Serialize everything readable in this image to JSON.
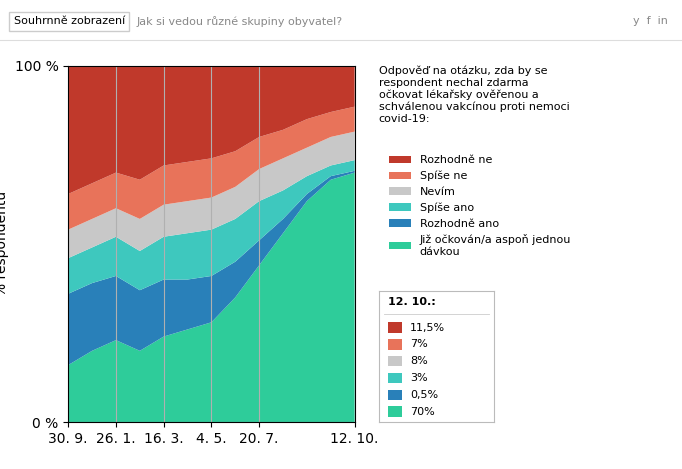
{
  "chart_data": {
    "type": "area",
    "stacked": true,
    "title": "Odpověď na otázku, zda by se\nrespondent nechal zdarma\nočkovat lékařsky ověřenou a\nschválenou vakcínou proti nemoci\ncovid-19:",
    "ylabel": "% respondentů",
    "categories": [
      "30. 9.",
      null,
      "26. 1.",
      null,
      "16. 3.",
      null,
      "4. 5.",
      null,
      "20. 7.",
      null,
      null,
      null,
      "12. 10."
    ],
    "series": [
      {
        "name": "Rozhodně ne",
        "color": "#c0392b",
        "values": [
          36,
          33,
          30,
          32,
          28,
          27,
          26,
          24,
          20,
          18,
          15,
          13,
          11.5
        ]
      },
      {
        "name": "Spíše ne",
        "color": "#e8735a",
        "values": [
          10,
          10,
          10,
          11,
          11,
          11,
          11,
          10,
          9,
          8,
          8,
          7,
          7
        ]
      },
      {
        "name": "Nevím",
        "color": "#c8c8c8",
        "values": [
          8,
          8,
          8,
          9,
          9,
          9,
          9,
          9,
          9,
          9,
          8,
          8,
          8
        ]
      },
      {
        "name": "Spíše ano",
        "color": "#3ec8be",
        "values": [
          10,
          10,
          11,
          11,
          12,
          13,
          13,
          12,
          11,
          8,
          5,
          3,
          3
        ]
      },
      {
        "name": "Rozhodně ano",
        "color": "#2980b9",
        "values": [
          20,
          19,
          18,
          17,
          16,
          14,
          13,
          10,
          7,
          4,
          2,
          1,
          0.5
        ]
      },
      {
        "name": "Již očkován/a aspoň jednou\ndávkou",
        "color": "#2ecc9a",
        "values": [
          16,
          20,
          23,
          20,
          24,
          26,
          28,
          35,
          44,
          53,
          62,
          68,
          70
        ]
      }
    ],
    "ylim": [
      0,
      100
    ],
    "yticks": [
      {
        "value": 0,
        "label": "0 %"
      },
      {
        "value": 100,
        "label": "100 %"
      }
    ],
    "grid": true,
    "legend": "upper left",
    "annotations": {
      "header": [
        "Souhrnně zobrazení",
        "Jak si vedou různé skupiny obyvatel?",
        "y  f  in"
      ],
      "tooltip_title": "12. 10.:",
      "tooltip": [
        "11,5%",
        "7%",
        "8%",
        "3%",
        "0,5%",
        "70%"
      ]
    }
  }
}
